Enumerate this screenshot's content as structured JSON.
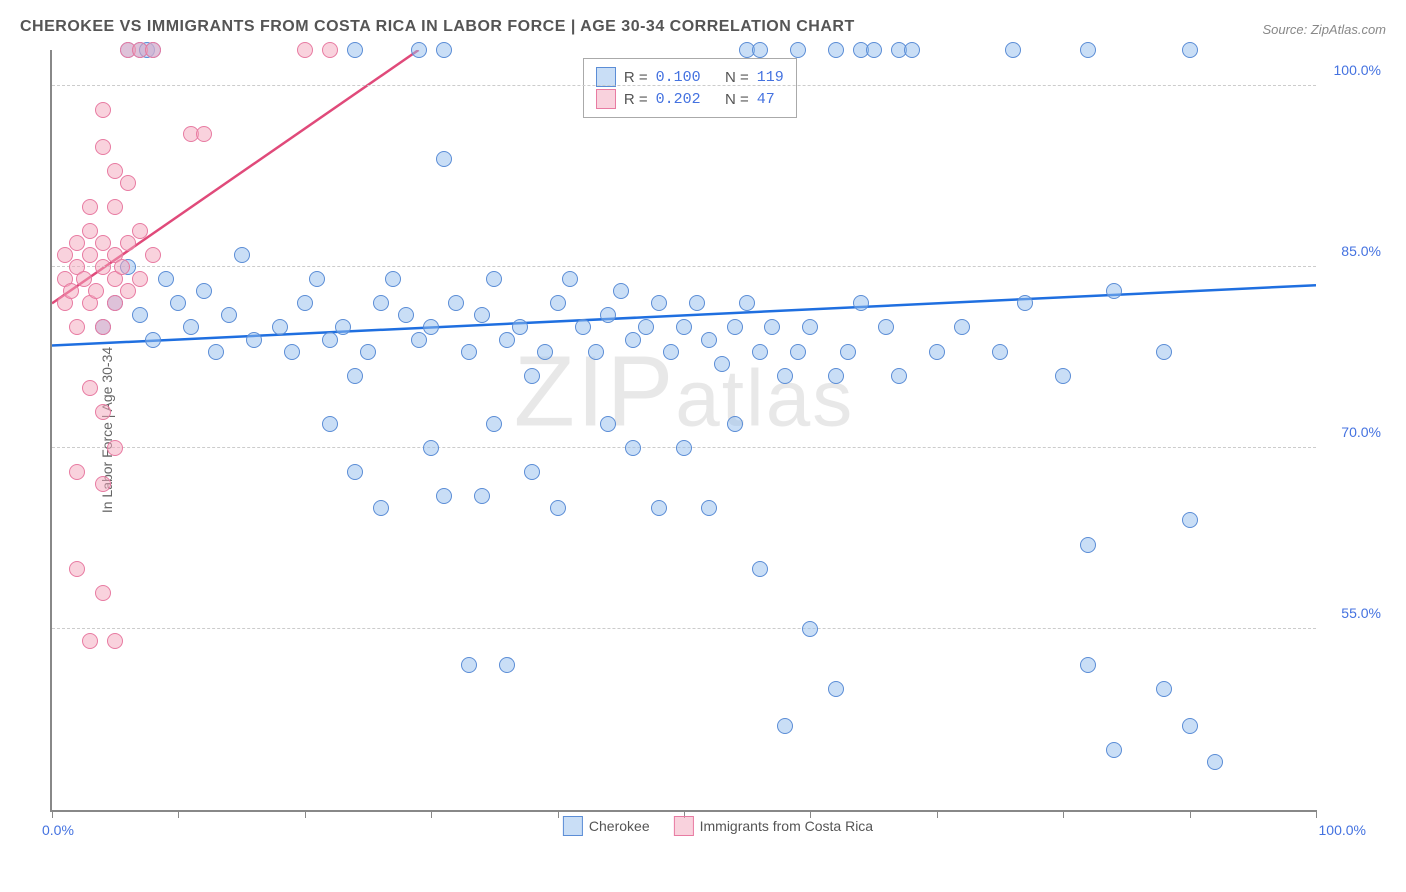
{
  "title": "CHEROKEE VS IMMIGRANTS FROM COSTA RICA IN LABOR FORCE | AGE 30-34 CORRELATION CHART",
  "source": "Source: ZipAtlas.com",
  "watermark": "ZIPatlas",
  "ylabel": "In Labor Force | Age 30-34",
  "chart": {
    "type": "scatter",
    "background_color": "#ffffff",
    "grid_color": "#cccccc",
    "axis_color": "#888888",
    "tick_label_color": "#4472e0",
    "xlim": [
      0,
      100
    ],
    "ylim": [
      40,
      103
    ],
    "xticks": [
      0,
      10,
      20,
      30,
      40,
      50,
      60,
      70,
      80,
      90,
      100
    ],
    "xlabels": {
      "min": "0.0%",
      "max": "100.0%"
    },
    "yticks": [
      {
        "value": 55,
        "label": "55.0%"
      },
      {
        "value": 70,
        "label": "70.0%"
      },
      {
        "value": 85,
        "label": "85.0%"
      },
      {
        "value": 100,
        "label": "100.0%"
      }
    ],
    "marker_size": 16,
    "marker_opacity": 0.5,
    "series": [
      {
        "name": "Cherokee",
        "legend_label": "Cherokee",
        "color_fill": "#93bded",
        "color_border": "#5b8dd6",
        "trend_color": "#1f6fe0",
        "trend_width": 2.5,
        "trend": {
          "x0": 0,
          "y0": 78.5,
          "x1": 100,
          "y1": 83.5
        },
        "R": "0.100",
        "N": "119",
        "points": [
          [
            6,
            103
          ],
          [
            7,
            103
          ],
          [
            7.5,
            103
          ],
          [
            8,
            103
          ],
          [
            24,
            103
          ],
          [
            29,
            103
          ],
          [
            31,
            103
          ],
          [
            55,
            103
          ],
          [
            56,
            103
          ],
          [
            59,
            103
          ],
          [
            62,
            103
          ],
          [
            64,
            103
          ],
          [
            65,
            103
          ],
          [
            67,
            103
          ],
          [
            68,
            103
          ],
          [
            76,
            103
          ],
          [
            82,
            103
          ],
          [
            90,
            103
          ],
          [
            4,
            80
          ],
          [
            5,
            82
          ],
          [
            6,
            85
          ],
          [
            7,
            81
          ],
          [
            8,
            79
          ],
          [
            9,
            84
          ],
          [
            10,
            82
          ],
          [
            11,
            80
          ],
          [
            12,
            83
          ],
          [
            13,
            78
          ],
          [
            14,
            81
          ],
          [
            15,
            86
          ],
          [
            16,
            79
          ],
          [
            18,
            80
          ],
          [
            19,
            78
          ],
          [
            20,
            82
          ],
          [
            21,
            84
          ],
          [
            22,
            79
          ],
          [
            23,
            80
          ],
          [
            24,
            76
          ],
          [
            25,
            78
          ],
          [
            26,
            82
          ],
          [
            27,
            84
          ],
          [
            28,
            81
          ],
          [
            29,
            79
          ],
          [
            30,
            80
          ],
          [
            31,
            94
          ],
          [
            32,
            82
          ],
          [
            33,
            78
          ],
          [
            34,
            81
          ],
          [
            35,
            84
          ],
          [
            36,
            79
          ],
          [
            37,
            80
          ],
          [
            38,
            76
          ],
          [
            39,
            78
          ],
          [
            40,
            82
          ],
          [
            41,
            84
          ],
          [
            42,
            80
          ],
          [
            43,
            78
          ],
          [
            44,
            81
          ],
          [
            45,
            83
          ],
          [
            46,
            79
          ],
          [
            47,
            80
          ],
          [
            48,
            82
          ],
          [
            49,
            78
          ],
          [
            50,
            80
          ],
          [
            51,
            82
          ],
          [
            52,
            79
          ],
          [
            53,
            77
          ],
          [
            54,
            80
          ],
          [
            55,
            82
          ],
          [
            56,
            78
          ],
          [
            57,
            80
          ],
          [
            58,
            76
          ],
          [
            59,
            78
          ],
          [
            60,
            80
          ],
          [
            62,
            76
          ],
          [
            63,
            78
          ],
          [
            64,
            82
          ],
          [
            66,
            80
          ],
          [
            67,
            76
          ],
          [
            70,
            78
          ],
          [
            72,
            80
          ],
          [
            75,
            78
          ],
          [
            77,
            82
          ],
          [
            80,
            76
          ],
          [
            82,
            62
          ],
          [
            84,
            83
          ],
          [
            88,
            78
          ],
          [
            90,
            64
          ],
          [
            22,
            72
          ],
          [
            24,
            68
          ],
          [
            26,
            65
          ],
          [
            30,
            70
          ],
          [
            31,
            66
          ],
          [
            33,
            52
          ],
          [
            34,
            66
          ],
          [
            35,
            72
          ],
          [
            36,
            52
          ],
          [
            38,
            68
          ],
          [
            40,
            65
          ],
          [
            44,
            72
          ],
          [
            46,
            70
          ],
          [
            48,
            65
          ],
          [
            50,
            70
          ],
          [
            52,
            65
          ],
          [
            54,
            72
          ],
          [
            56,
            60
          ],
          [
            58,
            47
          ],
          [
            60,
            55
          ],
          [
            62,
            50
          ],
          [
            82,
            52
          ],
          [
            84,
            45
          ],
          [
            88,
            50
          ],
          [
            90,
            47
          ],
          [
            92,
            44
          ]
        ]
      },
      {
        "name": "Immigrants from Costa Rica",
        "legend_label": "Immigrants from Costa Rica",
        "color_fill": "#f4a6bc",
        "color_border": "#e87ba2",
        "trend_color": "#e04a7a",
        "trend_width": 2.5,
        "trend": {
          "x0": 0,
          "y0": 82,
          "x1": 29,
          "y1": 103
        },
        "R": "0.202",
        "N": "47",
        "points": [
          [
            1,
            82
          ],
          [
            1,
            84
          ],
          [
            1,
            86
          ],
          [
            1.5,
            83
          ],
          [
            2,
            85
          ],
          [
            2,
            87
          ],
          [
            2,
            80
          ],
          [
            2.5,
            84
          ],
          [
            3,
            86
          ],
          [
            3,
            82
          ],
          [
            3,
            88
          ],
          [
            3.5,
            83
          ],
          [
            4,
            85
          ],
          [
            4,
            87
          ],
          [
            4,
            80
          ],
          [
            5,
            84
          ],
          [
            5,
            86
          ],
          [
            5,
            82
          ],
          [
            5.5,
            85
          ],
          [
            6,
            87
          ],
          [
            6,
            83
          ],
          [
            7,
            88
          ],
          [
            7,
            84
          ],
          [
            8,
            86
          ],
          [
            4,
            95
          ],
          [
            5,
            90
          ],
          [
            6,
            92
          ],
          [
            3,
            90
          ],
          [
            4,
            98
          ],
          [
            5,
            93
          ],
          [
            6,
            103
          ],
          [
            7,
            103
          ],
          [
            8,
            103
          ],
          [
            20,
            103
          ],
          [
            22,
            103
          ],
          [
            11,
            96
          ],
          [
            12,
            96
          ],
          [
            3,
            75
          ],
          [
            4,
            73
          ],
          [
            2,
            68
          ],
          [
            4,
            67
          ],
          [
            5,
            70
          ],
          [
            2,
            60
          ],
          [
            4,
            58
          ],
          [
            5,
            54
          ],
          [
            3,
            54
          ]
        ]
      }
    ]
  },
  "stats_legend": {
    "rows": [
      {
        "swatch": "blue",
        "r": "0.100",
        "n": "119"
      },
      {
        "swatch": "pink",
        "r": "0.202",
        "n": "47"
      }
    ]
  },
  "bottom_legend": [
    {
      "swatch": "blue",
      "label": "Cherokee"
    },
    {
      "swatch": "pink",
      "label": "Immigrants from Costa Rica"
    }
  ]
}
